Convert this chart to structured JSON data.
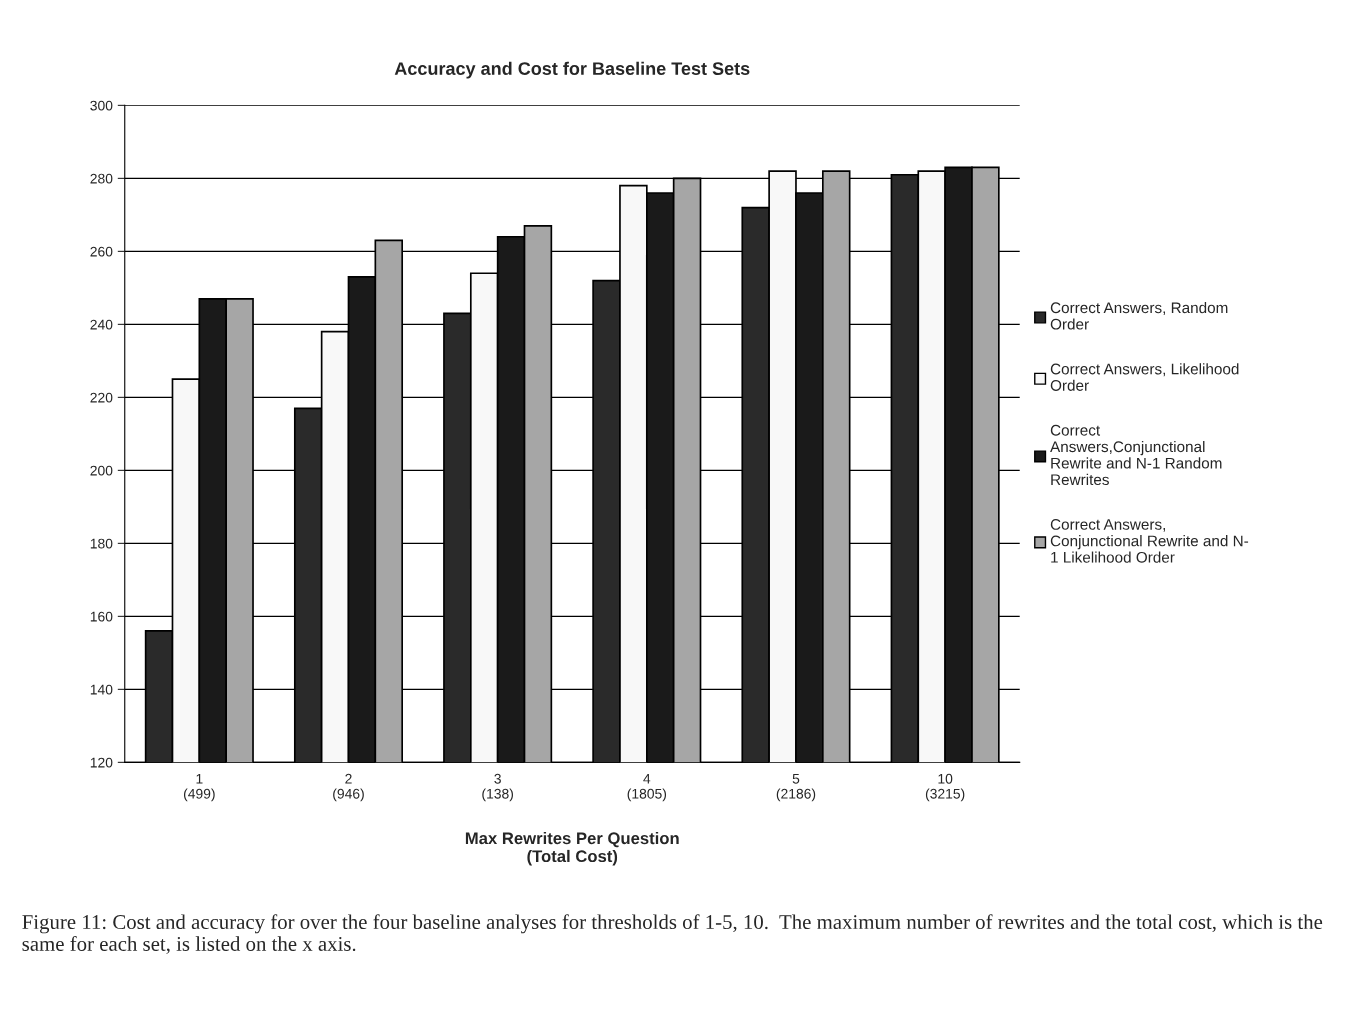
{
  "chart_data": {
    "type": "bar",
    "title": "Accuracy and Cost for Baseline Test Sets",
    "xlabel": "Max Rewrites Per Question\n(Total Cost)",
    "categories": [
      "1\n(499)",
      "2\n(946)",
      "3\n(138)",
      "4\n(1805)",
      "5\n(2186)",
      "10\n(3215)"
    ],
    "series": [
      {
        "name": "Correct Answers, Random\nOrder",
        "color": "#2a2a2a",
        "values": [
          156,
          217,
          243,
          252,
          272,
          281
        ]
      },
      {
        "name": "Correct Answers, Likelihood\nOrder",
        "color": "#f8f8f8",
        "values": [
          225,
          238,
          254,
          278,
          282,
          282
        ]
      },
      {
        "name": "Correct\nAnswers,Conjunctional\nRewrite and N-1 Random\nRewrites",
        "color": "#1a1a1a",
        "values": [
          247,
          253,
          264,
          276,
          276,
          283
        ]
      },
      {
        "name": "Correct Answers,\nConjunctional Rewrite and N-\n1 Likelihood Order",
        "color": "#a6a6a6",
        "values": [
          247,
          263,
          267,
          280,
          282,
          283
        ]
      }
    ],
    "ylim": [
      120,
      300
    ],
    "yticks": [
      120,
      140,
      160,
      180,
      200,
      220,
      240,
      260,
      280,
      300
    ],
    "grid": "y",
    "legend": "right",
    "annotations": [
      "Figure 11: Cost and accuracy for over the four baseline analyses for thresholds of 1-5, 10.  The maximum number of rewrites and the total cost, which is the same for each set, is listed on the x axis."
    ]
  }
}
